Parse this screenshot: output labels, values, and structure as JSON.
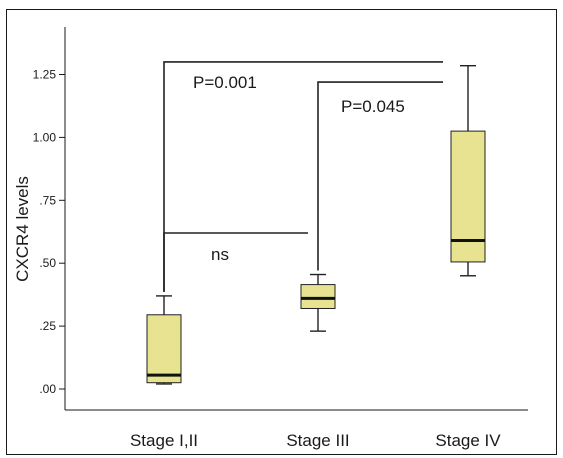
{
  "chart_data": {
    "type": "box",
    "ylabel": "CXCR4 levels",
    "ylim": [
      -0.08,
      1.5
    ],
    "y_ticks": [
      ".00",
      ".25",
      ".50",
      ".75",
      "1.00",
      "1.25"
    ],
    "y_tick_values": [
      0,
      0.25,
      0.5,
      0.75,
      1.0,
      1.25
    ],
    "categories": [
      "Stage I,II",
      "Stage III",
      "Stage IV"
    ],
    "box_color": "#e8e390",
    "boxes": [
      {
        "category": "Stage I,II",
        "min": 0.02,
        "q1": 0.025,
        "median": 0.055,
        "q3": 0.295,
        "max": 0.37
      },
      {
        "category": "Stage III",
        "min": 0.23,
        "q1": 0.32,
        "median": 0.36,
        "q3": 0.415,
        "max": 0.455
      },
      {
        "category": "Stage IV",
        "min": 0.45,
        "q1": 0.505,
        "median": 0.59,
        "q3": 1.025,
        "max": 1.285
      }
    ],
    "annotations": [
      {
        "label": "P=0.001",
        "from": "Stage I,II",
        "to": "Stage IV",
        "y_left": 0.37,
        "y_right": 1.285,
        "y_bar": 1.3
      },
      {
        "label": "P=0.045",
        "from": "Stage III",
        "to": "Stage IV",
        "y_left": 0.455,
        "y_right": 1.285,
        "y_bar": 1.22
      },
      {
        "label": "ns",
        "from": "Stage I,II",
        "to": "Stage III",
        "y_left": 0.37,
        "y_right": 0.455,
        "y_bar": 0.62
      }
    ]
  }
}
